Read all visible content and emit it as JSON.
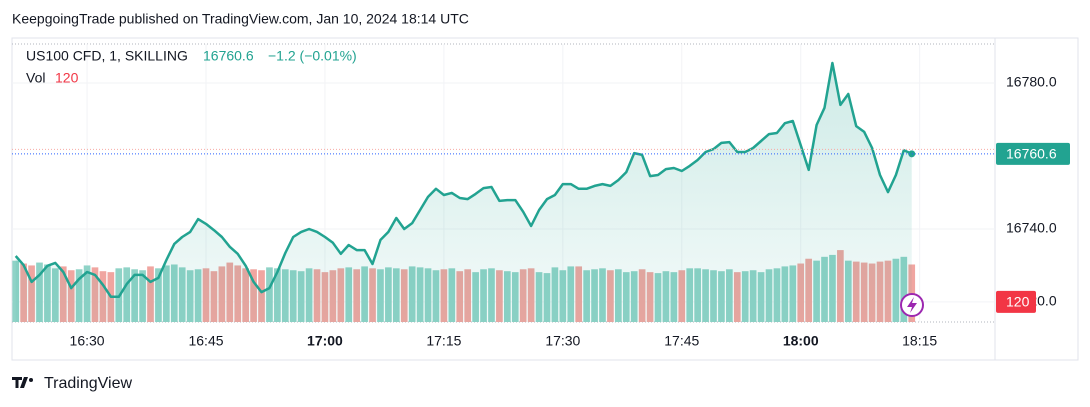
{
  "attribution": "KeepgoingTrade published on TradingView.com, Jan 10, 2024 18:14 UTC",
  "footer": "TradingView",
  "chart_data": {
    "type": "line",
    "title": "US100 CFD, 1, SKILLING",
    "change_label": "−1.2 (−0.01%)",
    "previous_close_line": 16761.8,
    "x": [
      "16:21",
      "16:22",
      "16:23",
      "16:24",
      "16:25",
      "16:26",
      "16:27",
      "16:28",
      "16:29",
      "16:30",
      "16:31",
      "16:32",
      "16:33",
      "16:34",
      "16:35",
      "16:36",
      "16:37",
      "16:38",
      "16:39",
      "16:40",
      "16:41",
      "16:42",
      "16:43",
      "16:44",
      "16:45",
      "16:46",
      "16:47",
      "16:48",
      "16:49",
      "16:50",
      "16:51",
      "16:52",
      "16:53",
      "16:54",
      "16:55",
      "16:56",
      "16:57",
      "16:58",
      "16:59",
      "17:00",
      "17:01",
      "17:02",
      "17:03",
      "17:04",
      "17:05",
      "17:06",
      "17:07",
      "17:08",
      "17:09",
      "17:10",
      "17:11",
      "17:12",
      "17:13",
      "17:14",
      "17:15",
      "17:16",
      "17:17",
      "17:18",
      "17:19",
      "17:20",
      "17:21",
      "17:22",
      "17:23",
      "17:24",
      "17:25",
      "17:26",
      "17:27",
      "17:28",
      "17:29",
      "17:30",
      "17:31",
      "17:32",
      "17:33",
      "17:34",
      "17:35",
      "17:36",
      "17:37",
      "17:38",
      "17:39",
      "17:40",
      "17:41",
      "17:42",
      "17:43",
      "17:44",
      "17:45",
      "17:46",
      "17:47",
      "17:48",
      "17:49",
      "17:50",
      "17:51",
      "17:52",
      "17:53",
      "17:54",
      "17:55",
      "17:56",
      "17:57",
      "17:58",
      "17:59",
      "18:00",
      "18:01",
      "18:02",
      "18:03",
      "18:04",
      "18:05",
      "18:06",
      "18:07",
      "18:08",
      "18:09",
      "18:10",
      "18:11",
      "18:12",
      "18:13",
      "18:14"
    ],
    "series": [
      {
        "color": "#22a391",
        "values": [
          16732.6,
          16730.1,
          16725.5,
          16727.4,
          16729.9,
          16730.7,
          16728.2,
          16723.8,
          16726.3,
          16728.2,
          16727.4,
          16724.7,
          16721.4,
          16721.4,
          16724.9,
          16727.4,
          16727.4,
          16725.5,
          16726.6,
          16731.5,
          16735.9,
          16737.8,
          16739.2,
          16742.7,
          16741.4,
          16739.7,
          16737.8,
          16735.1,
          16733.2,
          16729.9,
          16725.5,
          16722.7,
          16723.8,
          16728.2,
          16733.4,
          16737.8,
          16739.2,
          16740.0,
          16739.2,
          16737.8,
          16736.2,
          16733.2,
          16735.6,
          16734.2,
          16734.2,
          16730.4,
          16737.0,
          16739.2,
          16743.0,
          16740.0,
          16741.6,
          16745.2,
          16748.8,
          16751.0,
          16749.3,
          16749.9,
          16748.5,
          16748.2,
          16749.6,
          16751.2,
          16751.5,
          16747.7,
          16747.9,
          16747.9,
          16744.7,
          16740.8,
          16745.2,
          16748.2,
          16749.3,
          16752.3,
          16752.3,
          16751.0,
          16751.0,
          16751.8,
          16752.3,
          16751.8,
          16753.4,
          16755.6,
          16760.8,
          16760.3,
          16754.5,
          16754.8,
          16756.4,
          16756.7,
          16755.9,
          16757.3,
          16758.9,
          16761.1,
          16761.9,
          16763.6,
          16763.8,
          16761.1,
          16761.1,
          16762.2,
          16764.1,
          16766.0,
          16766.3,
          16769.0,
          16769.6,
          16763.0,
          16756.2,
          16768.5,
          16773.2,
          16785.5,
          16774.0,
          16777.0,
          16768.2,
          16766.6,
          16762.2,
          16754.8,
          16750.1,
          16754.8,
          16761.6,
          16760.6
        ]
      },
      {
        "name": "Vol",
        "type": "bar",
        "axis": "y2",
        "up_color": "#8fd3c7",
        "down_color": "#f0a5a0",
        "label_color": "#f23645",
        "values": [
          128,
          122,
          118,
          124,
          120,
          112,
          116,
          108,
          110,
          118,
          114,
          106,
          104,
          112,
          114,
          110,
          108,
          116,
          112,
          118,
          120,
          114,
          108,
          110,
          112,
          106,
          116,
          124,
          118,
          112,
          110,
          108,
          114,
          112,
          110,
          108,
          106,
          112,
          110,
          104,
          108,
          112,
          114,
          110,
          116,
          112,
          110,
          114,
          112,
          110,
          116,
          114,
          112,
          108,
          110,
          112,
          106,
          110,
          104,
          110,
          112,
          108,
          106,
          104,
          110,
          112,
          104,
          102,
          114,
          108,
          116,
          116,
          108,
          110,
          112,
          108,
          110,
          104,
          106,
          110,
          104,
          102,
          106,
          104,
          108,
          112,
          112,
          110,
          108,
          106,
          110,
          104,
          106,
          108,
          104,
          110,
          112,
          116,
          118,
          122,
          132,
          128,
          136,
          140,
          150,
          128,
          126,
          124,
          122,
          126,
          128,
          132,
          136,
          120
        ]
      }
    ],
    "xlim": [
      "16:20:32",
      "18:24:30"
    ],
    "xticks": [
      "16:30",
      "16:45",
      "17:00",
      "17:15",
      "17:30",
      "17:45",
      "18:00",
      "18:15"
    ],
    "ylim": [
      16714.5,
      16790.7
    ],
    "yticks": [
      {
        "value": 16720,
        "label": "16720.0"
      },
      {
        "value": 16740,
        "label": "16740.0"
      },
      {
        "value": 16780,
        "label": "16780.0"
      }
    ],
    "y2lim": [
      0,
      580
    ],
    "grid": true
  }
}
